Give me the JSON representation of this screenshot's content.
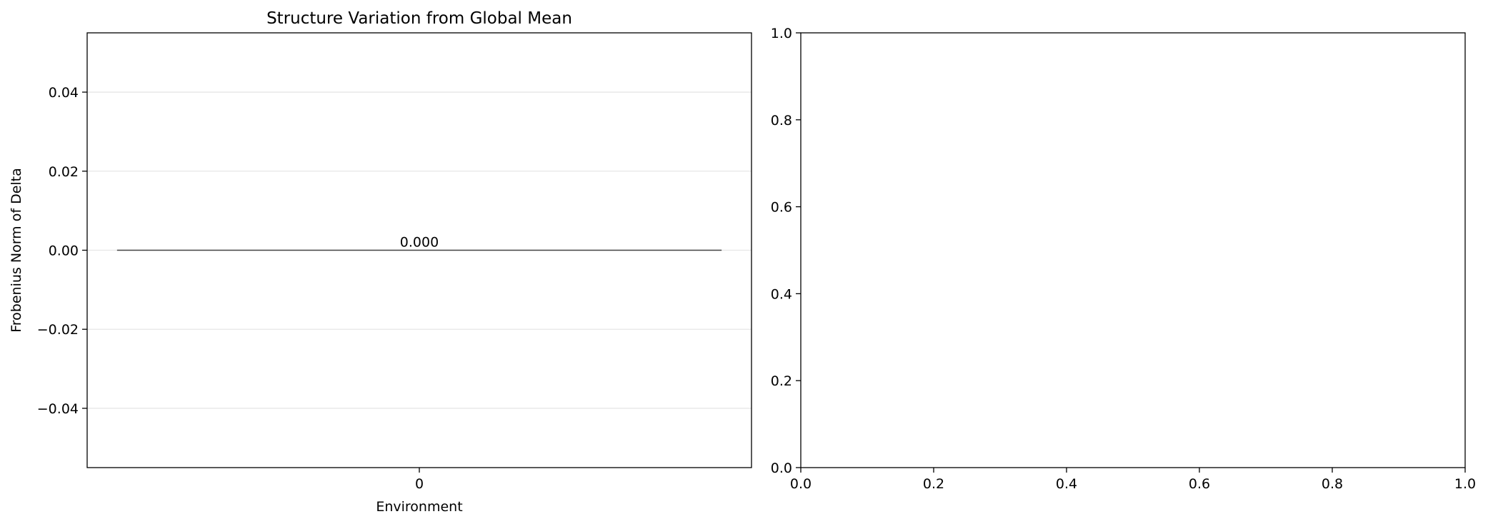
{
  "chart_data": [
    {
      "type": "bar",
      "title": "Structure Variation from Global Mean",
      "xlabel": "Environment",
      "ylabel": "Frobenius Norm of Delta",
      "categories": [
        "0"
      ],
      "values": [
        0.0
      ],
      "data_labels": [
        "0.000"
      ],
      "ylim": [
        -0.055,
        0.055
      ],
      "yticks": [
        -0.04,
        -0.02,
        0.0,
        0.02,
        0.04
      ],
      "ytick_labels": [
        "−0.04",
        "−0.02",
        "0.00",
        "0.02",
        "0.04"
      ],
      "grid": "y",
      "grid_color": "#e6e6e6",
      "bar_edge_color": "#444444"
    },
    {
      "type": "empty",
      "title": "",
      "xlabel": "",
      "ylabel": "",
      "xlim": [
        0.0,
        1.0
      ],
      "ylim": [
        0.0,
        1.0
      ],
      "xticks": [
        0.0,
        0.2,
        0.4,
        0.6,
        0.8,
        1.0
      ],
      "xtick_labels": [
        "0.0",
        "0.2",
        "0.4",
        "0.6",
        "0.8",
        "1.0"
      ],
      "yticks": [
        0.0,
        0.2,
        0.4,
        0.6,
        0.8,
        1.0
      ],
      "ytick_labels": [
        "0.0",
        "0.2",
        "0.4",
        "0.6",
        "0.8",
        "1.0"
      ],
      "grid": "none"
    }
  ]
}
